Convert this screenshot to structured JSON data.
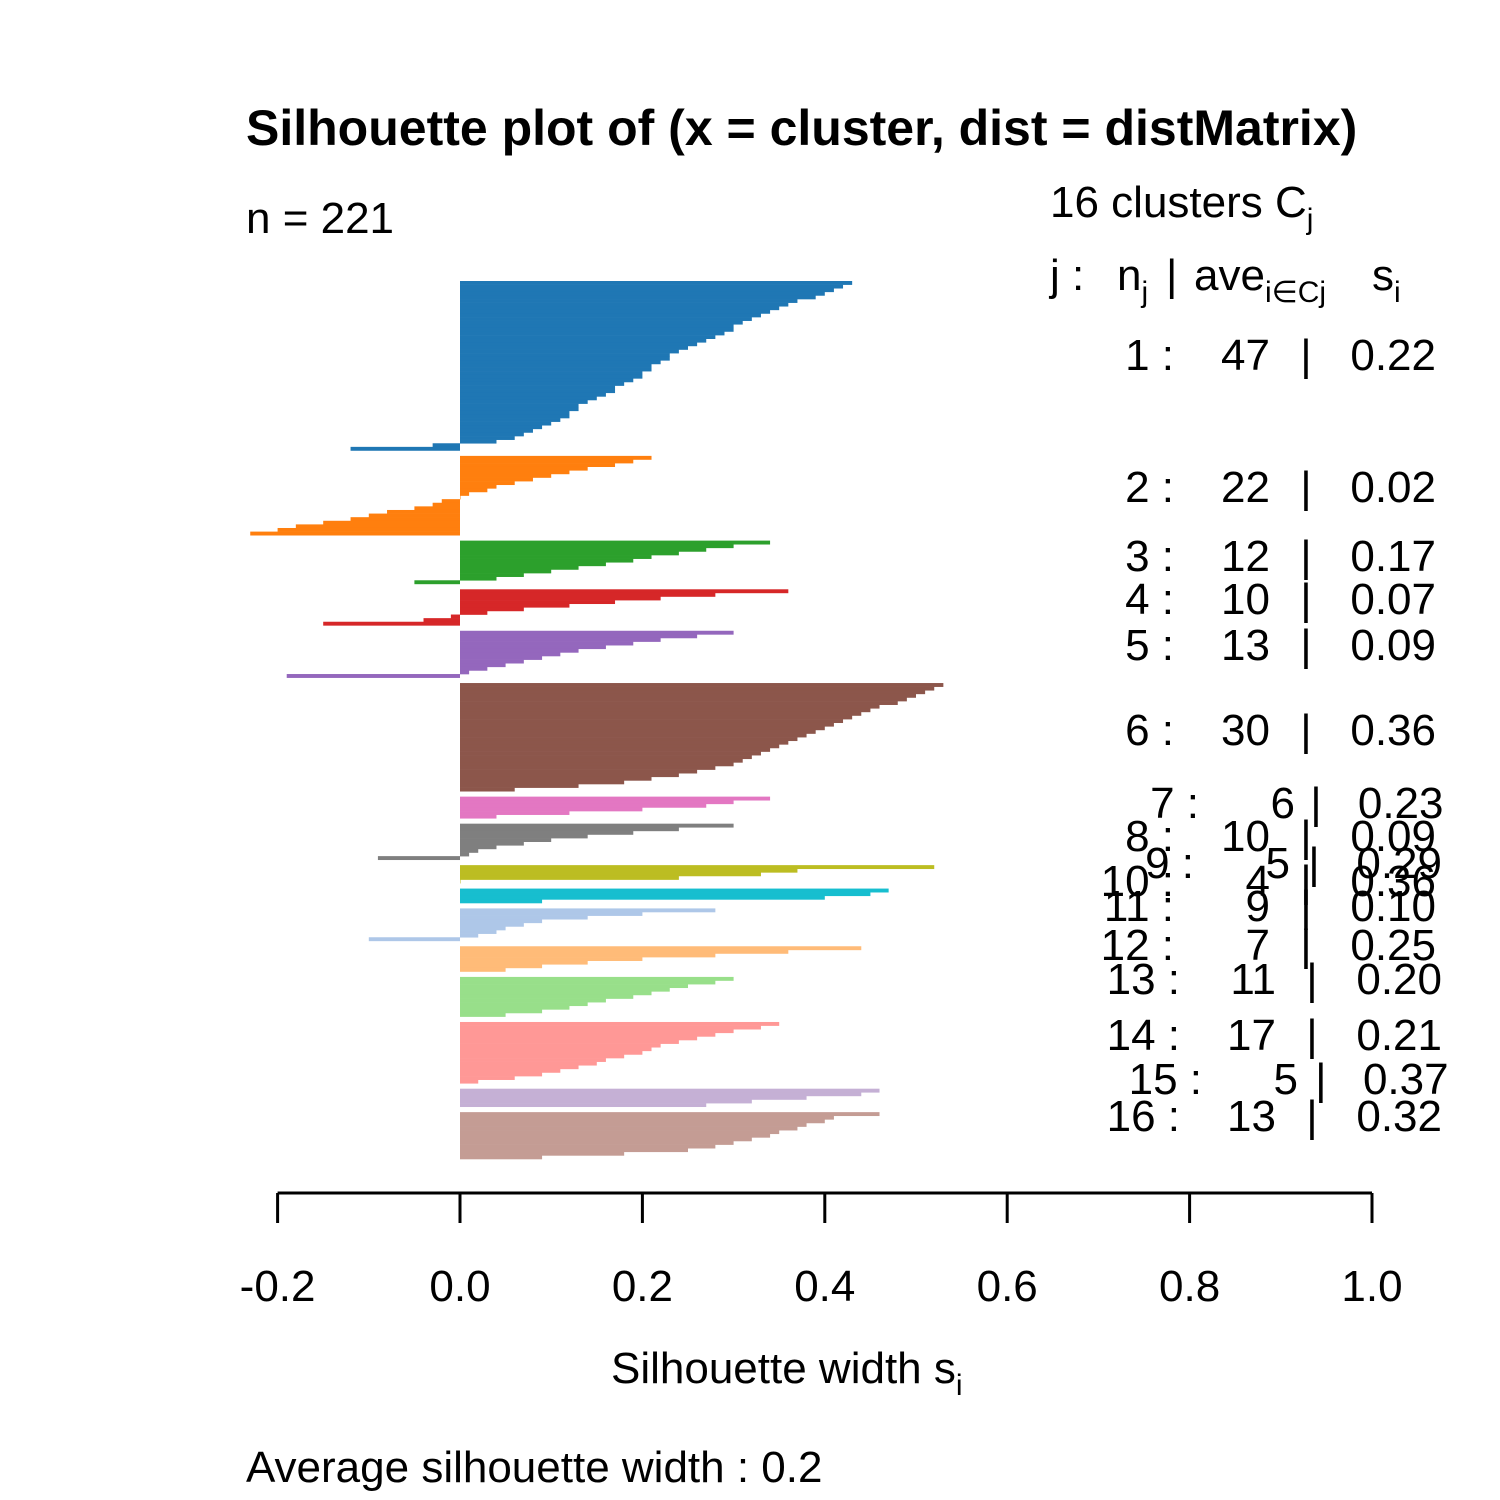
{
  "chart_data": {
    "type": "bar",
    "orientation": "horizontal",
    "title": "Silhouette plot of (x = cluster, dist = distMatrix)",
    "n_label": "n = 221",
    "legend_title": "16  clusters  C",
    "legend_title_sub": "j",
    "legend_header": {
      "j": "j :",
      "n": "n",
      "n_sub": "j",
      "bar": "|",
      "ave": "ave",
      "ave_sub": "i∈Cj",
      "s": "s",
      "s_sub": "i"
    },
    "xlabel": "Silhouette width s",
    "xlabel_sub": "i",
    "footer": "Average silhouette width :  0.2",
    "xlim": [
      -0.2,
      1.0
    ],
    "x_ticks": [
      -0.2,
      0.0,
      0.2,
      0.4,
      0.6,
      0.8,
      1.0
    ],
    "x_tick_labels": [
      "-0.2",
      "0.0",
      "0.2",
      "0.4",
      "0.6",
      "0.8",
      "1.0"
    ],
    "clusters": [
      {
        "j": "1 :",
        "n": "47",
        "avg": "0.22",
        "color": "#1f77b4",
        "values": [
          0.43,
          0.42,
          0.41,
          0.4,
          0.39,
          0.37,
          0.36,
          0.35,
          0.34,
          0.33,
          0.32,
          0.31,
          0.3,
          0.3,
          0.29,
          0.28,
          0.27,
          0.26,
          0.25,
          0.24,
          0.23,
          0.23,
          0.22,
          0.21,
          0.21,
          0.2,
          0.2,
          0.19,
          0.18,
          0.17,
          0.17,
          0.16,
          0.15,
          0.14,
          0.13,
          0.13,
          0.12,
          0.12,
          0.11,
          0.1,
          0.09,
          0.08,
          0.07,
          0.06,
          0.04,
          -0.03,
          -0.12
        ]
      },
      {
        "j": "2 :",
        "n": "22",
        "avg": "0.02",
        "color": "#ff7f0e",
        "values": [
          0.21,
          0.19,
          0.17,
          0.14,
          0.12,
          0.1,
          0.08,
          0.06,
          0.04,
          0.03,
          0.01,
          0.0,
          -0.02,
          -0.03,
          -0.05,
          -0.08,
          -0.1,
          -0.12,
          -0.15,
          -0.18,
          -0.2,
          -0.23
        ]
      },
      {
        "j": "3 :",
        "n": "12",
        "avg": "0.17",
        "color": "#2ca02c",
        "values": [
          0.34,
          0.3,
          0.27,
          0.24,
          0.21,
          0.19,
          0.16,
          0.13,
          0.1,
          0.07,
          0.04,
          -0.05
        ]
      },
      {
        "j": "4 :",
        "n": "10",
        "avg": "0.07",
        "color": "#d62728",
        "values": [
          0.36,
          0.28,
          0.22,
          0.17,
          0.12,
          0.07,
          0.03,
          -0.01,
          -0.04,
          -0.15
        ]
      },
      {
        "j": "5 :",
        "n": "13",
        "avg": "0.09",
        "color": "#9467bd",
        "values": [
          0.3,
          0.26,
          0.22,
          0.19,
          0.16,
          0.13,
          0.11,
          0.09,
          0.07,
          0.05,
          0.03,
          0.01,
          -0.19
        ]
      },
      {
        "j": "6 :",
        "n": "30",
        "avg": "0.36",
        "color": "#8c564b",
        "values": [
          0.53,
          0.52,
          0.51,
          0.5,
          0.49,
          0.48,
          0.46,
          0.45,
          0.44,
          0.43,
          0.42,
          0.41,
          0.4,
          0.39,
          0.38,
          0.37,
          0.36,
          0.35,
          0.34,
          0.33,
          0.32,
          0.31,
          0.3,
          0.28,
          0.26,
          0.24,
          0.21,
          0.18,
          0.13,
          0.06
        ]
      },
      {
        "j": "7 :",
        "n": "6",
        "avg": "0.23",
        "color": "#e377c2",
        "values": [
          0.34,
          0.3,
          0.27,
          0.2,
          0.12,
          0.04
        ]
      },
      {
        "j": "8 :",
        "n": "10",
        "avg": "0.09",
        "color": "#7f7f7f",
        "values": [
          0.3,
          0.24,
          0.19,
          0.14,
          0.1,
          0.07,
          0.04,
          0.02,
          0.01,
          -0.09
        ]
      },
      {
        "j": "9 :",
        "n": "5",
        "avg": "0.29",
        "color": "#bcbd22",
        "values": [
          0.52,
          0.37,
          0.33,
          0.24,
          0.0
        ]
      },
      {
        "j": "10 :",
        "n": "4",
        "avg": "0.36",
        "color": "#17becf",
        "values": [
          0.47,
          0.45,
          0.4,
          0.09
        ]
      },
      {
        "j": "11 :",
        "n": "9",
        "avg": "0.10",
        "color": "#aec7e8",
        "values": [
          0.28,
          0.2,
          0.14,
          0.09,
          0.07,
          0.05,
          0.04,
          0.02,
          -0.1
        ]
      },
      {
        "j": "12 :",
        "n": "7",
        "avg": "0.25",
        "color": "#ffbb78",
        "values": [
          0.44,
          0.36,
          0.28,
          0.2,
          0.14,
          0.09,
          0.05
        ]
      },
      {
        "j": "13 :",
        "n": "11",
        "avg": "0.20",
        "color": "#98df8a",
        "values": [
          0.3,
          0.28,
          0.25,
          0.23,
          0.21,
          0.19,
          0.16,
          0.14,
          0.12,
          0.09,
          0.05
        ]
      },
      {
        "j": "14 :",
        "n": "17",
        "avg": "0.21",
        "color": "#ff9896",
        "values": [
          0.35,
          0.33,
          0.3,
          0.28,
          0.26,
          0.24,
          0.22,
          0.21,
          0.2,
          0.18,
          0.16,
          0.15,
          0.13,
          0.11,
          0.09,
          0.06,
          0.02
        ]
      },
      {
        "j": "15 :",
        "n": "5",
        "avg": "0.37",
        "color": "#c5b0d5",
        "values": [
          0.46,
          0.44,
          0.38,
          0.32,
          0.27
        ]
      },
      {
        "j": "16 :",
        "n": "13",
        "avg": "0.32",
        "color": "#c49c94",
        "values": [
          0.46,
          0.41,
          0.4,
          0.38,
          0.37,
          0.35,
          0.34,
          0.32,
          0.3,
          0.28,
          0.25,
          0.18,
          0.09
        ]
      }
    ]
  }
}
